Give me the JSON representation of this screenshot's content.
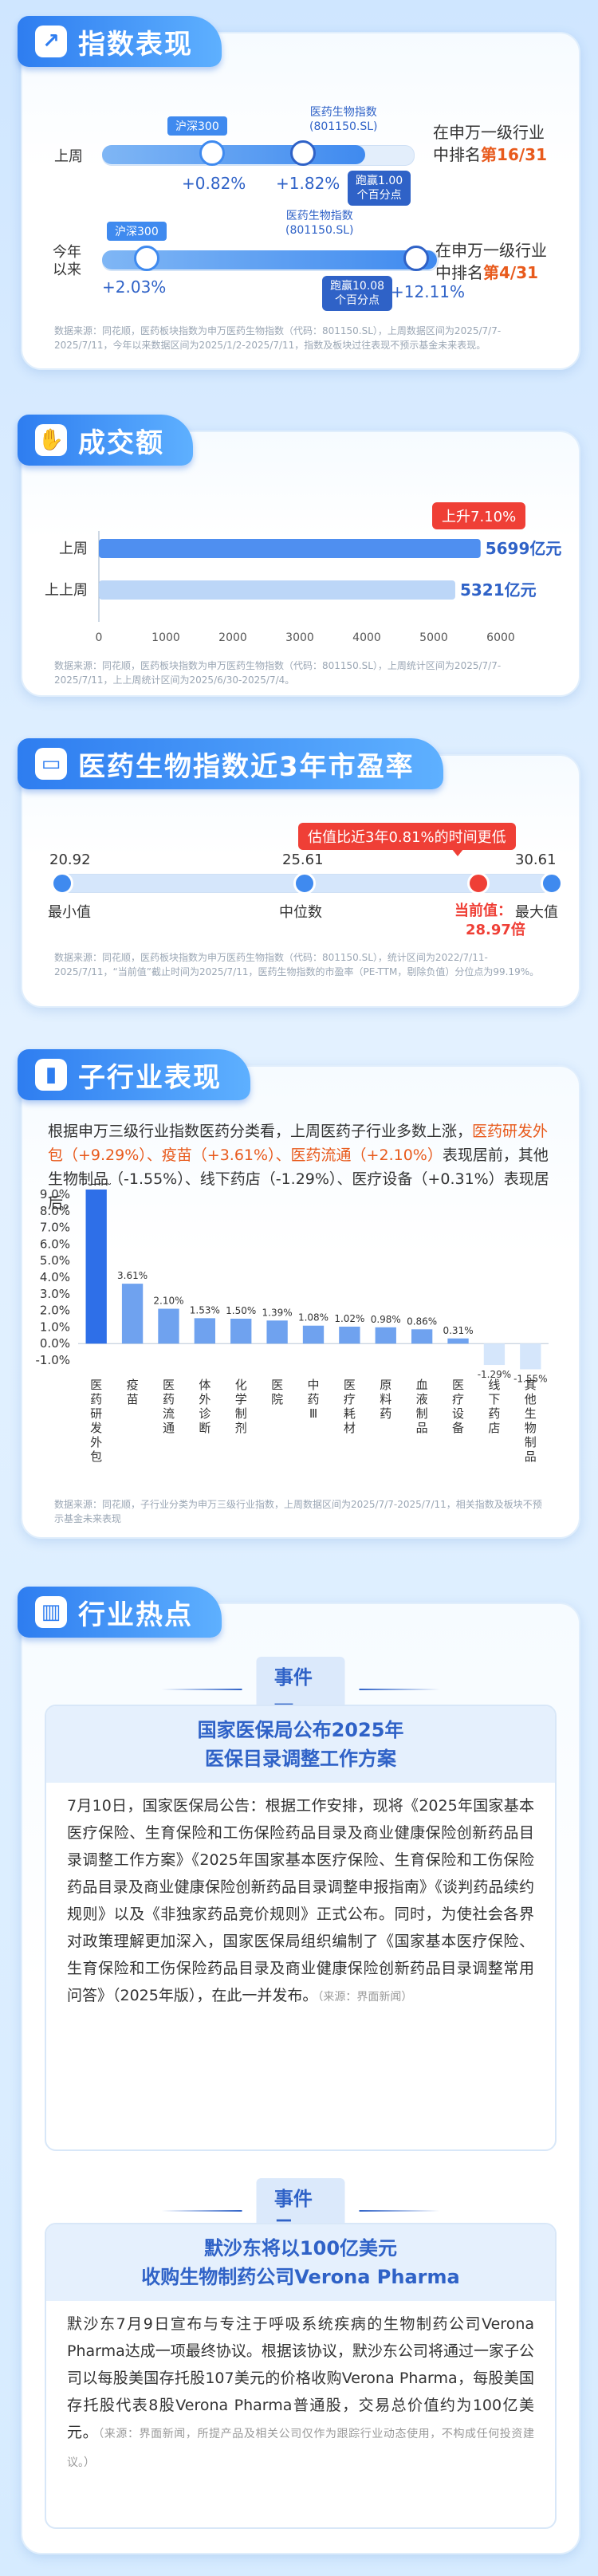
{
  "colors": {
    "primary": "#2e7df0",
    "accent_red": "#ef3f36",
    "accent_orange": "#e85a1c",
    "bar_blue": "#4f8ff0"
  },
  "index_section": {
    "title": "指数表现",
    "rows": [
      {
        "period": "上周",
        "hs300_label": "沪深300",
        "hs300_pct": "+0.82%",
        "bio_label": "医药生物指数\n(801150.SL)",
        "bio_pct": "+1.82%",
        "excess": "跑赢1.00\n个百分点",
        "rank_text": "在申万一级行业\n中排名",
        "rank": "第16/31",
        "hs300_value": 0.82,
        "bio_value": 1.82
      },
      {
        "period": "今年\n以来",
        "hs300_label": "沪深300",
        "hs300_pct": "+2.03%",
        "bio_label": "医药生物指数\n(801150.SL)",
        "bio_pct": "+12.11%",
        "excess": "跑赢10.08\n个百分点",
        "rank_text": "在申万一级行业\n中排名",
        "rank": "第4/31",
        "hs300_value": 2.03,
        "bio_value": 12.11
      }
    ],
    "note": "数据来源：同花顺，医药板块指数为申万医药生物指数（代码：801150.SL），上周数据区间为2025/7/7-2025/7/11，今年以来数据区间为2025/1/2-2025/7/11，指数及板块过往表现不预示基金未来表现。"
  },
  "turnover_section": {
    "title": "成交额",
    "badge": "上升7.10%",
    "note": "数据来源：同花顺，医药板块指数为申万医药生物指数（代码：801150.SL），上周统计区间为2025/7/7-2025/7/11，上上周统计区间为2025/6/30-2025/7/4。"
  },
  "pe_section": {
    "title": "医药生物指数近3年市盈率",
    "callout": "估值比近3年0.81%的时间更低",
    "min_value": "20.92",
    "min_label": "最小值",
    "median_value": "25.61",
    "median_label": "中位数",
    "max_value": "30.61",
    "max_label": "最大值",
    "current_label": "当前值：",
    "current_value": "28.97倍",
    "min": 20.92,
    "median": 25.61,
    "max": 30.61,
    "current": 28.97,
    "note": "数据来源：同花顺，医药板块指数为申万医药生物指数（代码：801150.SL），统计区间为2022/7/11-2025/7/11，“当前值”截止时间为2025/7/11，医药生物指数的市盈率（PE-TTM，剔除负值）分位点为99.19%。"
  },
  "sub_section": {
    "title": "子行业表现",
    "intro_a": "根据申万三级行业指数医药分类看，上周医药子行业多数上涨，",
    "intro_hl": "医药研发外包（+9.29%）、疫苗（+3.61%）、医药流通（+2.10%）",
    "intro_b": "表现居前，其他生物制品（-1.55%）、线下药店（-1.29%）、医疗设备（+0.31%）表现居后。",
    "note": "数据来源：同花顺，子行业分类为申万三级行业指数，上周数据区间为2025/7/7-2025/7/11，相关指数及板块不预示基金未来表现"
  },
  "chart_data": {
    "type": "bar",
    "categories": [
      "医药研发外包",
      "疫苗",
      "医药流通",
      "体外诊断",
      "化学制剂",
      "医院",
      "中药Ⅲ",
      "医疗耗材",
      "原料药",
      "血液制品",
      "医疗设备",
      "线下药店",
      "其他生物制品"
    ],
    "values": [
      9.29,
      3.61,
      2.1,
      1.53,
      1.5,
      1.39,
      1.08,
      1.02,
      0.98,
      0.86,
      0.31,
      -1.29,
      -1.55
    ],
    "value_labels": [
      "9.29%",
      "3.61%",
      "2.10%",
      "1.53%",
      "1.50%",
      "1.39%",
      "1.08%",
      "1.02%",
      "0.98%",
      "0.86%",
      "0.31%",
      "-1.29%",
      "-1.55%"
    ],
    "ylim": [
      -1.0,
      9.0
    ],
    "yticks": [
      "9.0%",
      "8.0%",
      "7.0%",
      "6.0%",
      "5.0%",
      "4.0%",
      "3.0%",
      "2.0%",
      "1.0%",
      "0.0%",
      "-1.0%"
    ],
    "secondary": {
      "type": "bar",
      "categories": [
        "上周",
        "上上周"
      ],
      "values": [
        5699,
        5321
      ],
      "value_labels": [
        "5699亿元",
        "5321亿元"
      ],
      "xlim": [
        0,
        6000
      ],
      "xticks": [
        "0",
        "1000",
        "2000",
        "3000",
        "4000",
        "5000",
        "6000"
      ]
    }
  },
  "hot_section": {
    "title": "行业热点",
    "events": [
      {
        "label": "事件一",
        "title_1": "国家医保局公布2025年",
        "title_2": "医保目录调整工作方案",
        "body": "7月10日，国家医保局公告：根据工作安排，现将《2025年国家基本医疗保险、生育保险和工伤保险药品目录及商业健康保险创新药品目录调整工作方案》《2025年国家基本医疗保险、生育保险和工伤保险药品目录及商业健康保险创新药品目录调整申报指南》《谈判药品续约规则》以及《非独家药品竞价规则》正式公布。同时，为使社会各界对政策理解更加深入，国家医保局组织编制了《国家基本医疗保险、生育保险和工伤保险药品目录及商业健康保险创新药品目录调整常用问答》（2025年版），在此一并发布。",
        "source": "（来源：界面新闻）"
      },
      {
        "label": "事件二",
        "title_1": "默沙东将以100亿美元",
        "title_2": "收购生物制药公司Verona Pharma",
        "body": "默沙东7月9日宣布与专注于呼吸系统疾病的生物制药公司Verona　Pharma达成一项最终协议。根据该协议，默沙东公司将通过一家子公司以每股美国存托股107美元的价格收购Verona Pharma，每股美国存托股代表8股Verona Pharma普通股，交易总价值约为100亿美元。",
        "source": "（来源：界面新闻，所提产品及相关公司仅作为跟踪行业动态使用，不构成任何投资建议。）"
      }
    ]
  }
}
